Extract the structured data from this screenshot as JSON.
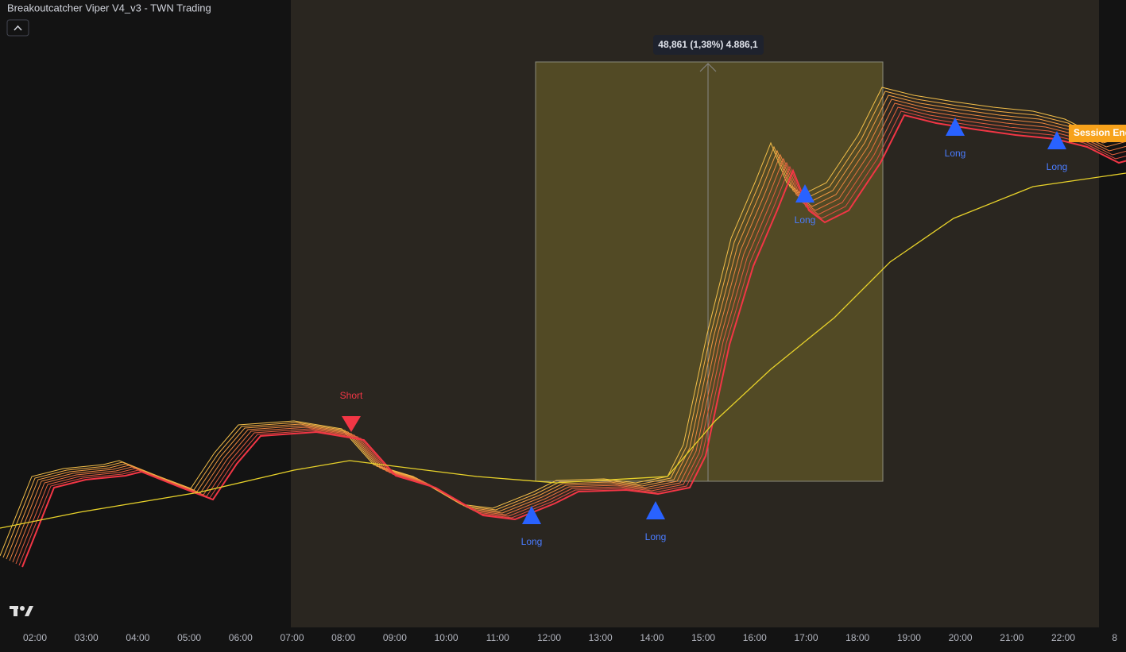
{
  "header": {
    "title": "Breakoutcatcher Viper V4_v3 - TWN Trading"
  },
  "measure": {
    "label": "48,861 (1,38%) 4.886,1"
  },
  "session_tag": "Session End",
  "signals": [
    "Short",
    "Long",
    "Long",
    "Long",
    "Long",
    "Long"
  ],
  "time_axis": [
    "02:00",
    "03:00",
    "04:00",
    "05:00",
    "06:00",
    "07:00",
    "08:00",
    "09:00",
    "10:00",
    "11:00",
    "12:00",
    "13:00",
    "14:00",
    "15:00",
    "16:00",
    "17:00",
    "18:00",
    "19:00",
    "20:00",
    "21:00",
    "22:00",
    "8"
  ]
}
